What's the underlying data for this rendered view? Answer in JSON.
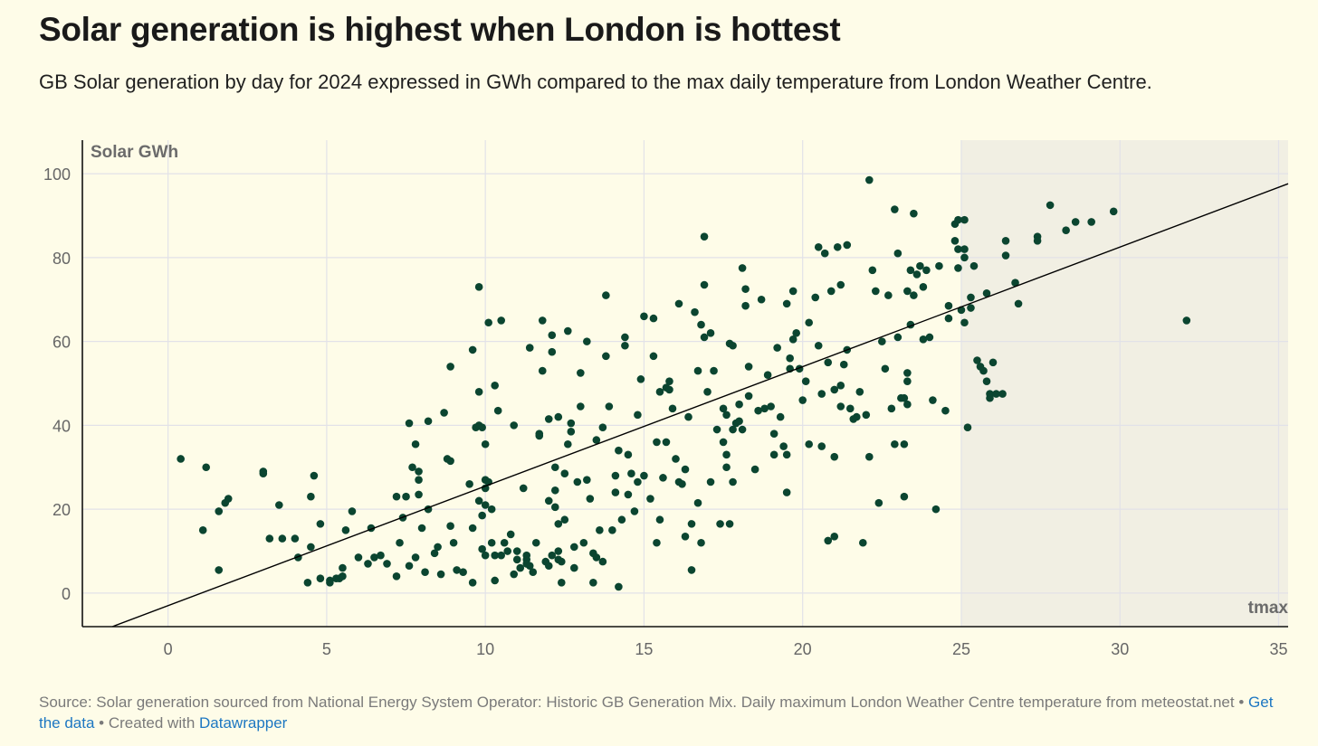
{
  "header": {
    "title": "Solar generation is highest when London is hottest",
    "subtitle": "GB Solar generation by day for 2024 expressed in GWh compared to the max daily temperature from London Weather Centre."
  },
  "footer": {
    "source": "Source: Solar generation sourced from National Energy System Operator: Historic GB Generation Mix. Daily maximum London Weather Centre temperature from meteostat.net",
    "sep1": " • ",
    "get_data": "Get the data",
    "sep2": " • Created with ",
    "datawrapper": "Datawrapper"
  },
  "colors": {
    "background": "#fefce8",
    "point": "#0b4530",
    "shade": "#f1efe3",
    "grid": "#e2e2e8",
    "trend": "#000000"
  },
  "chart_data": {
    "type": "scatter",
    "title": "Solar generation is highest when London is hottest",
    "xlabel": "tmax",
    "ylabel": "Solar GWh",
    "xlim": [
      -2.7,
      35.3
    ],
    "ylim": [
      -8,
      108
    ],
    "xticks": [
      0,
      5,
      10,
      15,
      20,
      25,
      30,
      35
    ],
    "yticks": [
      0,
      20,
      40,
      60,
      80,
      100
    ],
    "grid": true,
    "shaded_range": [
      25,
      35.3
    ],
    "trendline": {
      "slope": 2.85,
      "intercept": -3.0
    },
    "x_tick_labels": [
      "0",
      "5",
      "10",
      "15",
      "20",
      "25",
      "30",
      "35"
    ],
    "y_tick_labels": [
      "0",
      "20",
      "40",
      "60",
      "80",
      "100"
    ],
    "points": [
      [
        0.4,
        32
      ],
      [
        1.2,
        30
      ],
      [
        1.1,
        15
      ],
      [
        1.6,
        19.5
      ],
      [
        1.8,
        21.5
      ],
      [
        1.9,
        22.5
      ],
      [
        1.6,
        5.5
      ],
      [
        3.0,
        29
      ],
      [
        3.0,
        28.5
      ],
      [
        3.5,
        21
      ],
      [
        3.2,
        13
      ],
      [
        3.6,
        13
      ],
      [
        4.0,
        13
      ],
      [
        4.1,
        8.5
      ],
      [
        4.4,
        2.5
      ],
      [
        4.5,
        11
      ],
      [
        4.5,
        23
      ],
      [
        4.6,
        28
      ],
      [
        4.8,
        16.5
      ],
      [
        4.8,
        3.5
      ],
      [
        5.1,
        3
      ],
      [
        5.1,
        2.5
      ],
      [
        5.3,
        3.5
      ],
      [
        5.4,
        3.5
      ],
      [
        5.5,
        6
      ],
      [
        5.5,
        4
      ],
      [
        5.6,
        15
      ],
      [
        5.8,
        19.5
      ],
      [
        6.0,
        8.5
      ],
      [
        6.3,
        7
      ],
      [
        6.4,
        15.5
      ],
      [
        6.5,
        8.5
      ],
      [
        6.7,
        9
      ],
      [
        6.9,
        7
      ],
      [
        7.2,
        4
      ],
      [
        7.2,
        23
      ],
      [
        7.3,
        12
      ],
      [
        7.4,
        18
      ],
      [
        7.5,
        23
      ],
      [
        7.6,
        6.5
      ],
      [
        7.6,
        40.5
      ],
      [
        7.7,
        30
      ],
      [
        7.8,
        8.5
      ],
      [
        7.8,
        35.5
      ],
      [
        7.9,
        27
      ],
      [
        7.9,
        23.5
      ],
      [
        7.9,
        29
      ],
      [
        8.0,
        15.5
      ],
      [
        8.1,
        5
      ],
      [
        8.2,
        41
      ],
      [
        8.2,
        20
      ],
      [
        8.4,
        9.5
      ],
      [
        8.5,
        11
      ],
      [
        8.6,
        4.5
      ],
      [
        8.7,
        43
      ],
      [
        8.8,
        32
      ],
      [
        8.9,
        54
      ],
      [
        8.9,
        31.5
      ],
      [
        8.9,
        16
      ],
      [
        9.0,
        12
      ],
      [
        9.1,
        5.5
      ],
      [
        9.3,
        5
      ],
      [
        9.5,
        26
      ],
      [
        9.6,
        15.5
      ],
      [
        9.6,
        58
      ],
      [
        9.6,
        2.5
      ],
      [
        9.7,
        39.5
      ],
      [
        9.8,
        73
      ],
      [
        9.8,
        40
      ],
      [
        9.8,
        48
      ],
      [
        9.8,
        22
      ],
      [
        9.9,
        10.5
      ],
      [
        9.9,
        18.5
      ],
      [
        9.9,
        39.5
      ],
      [
        10.0,
        27
      ],
      [
        10.0,
        25
      ],
      [
        10.0,
        21
      ],
      [
        10.0,
        9
      ],
      [
        10.0,
        35.5
      ],
      [
        10.1,
        64.5
      ],
      [
        10.1,
        26.5
      ],
      [
        10.2,
        20
      ],
      [
        10.2,
        12
      ],
      [
        10.3,
        3
      ],
      [
        10.3,
        49.5
      ],
      [
        10.3,
        9
      ],
      [
        10.4,
        43.5
      ],
      [
        10.5,
        9
      ],
      [
        10.5,
        65
      ],
      [
        10.6,
        12
      ],
      [
        10.7,
        10
      ],
      [
        10.8,
        14
      ],
      [
        10.9,
        40
      ],
      [
        10.9,
        4.5
      ],
      [
        11.0,
        10
      ],
      [
        11.0,
        8
      ],
      [
        11.1,
        6
      ],
      [
        11.2,
        25
      ],
      [
        11.3,
        9
      ],
      [
        11.3,
        8
      ],
      [
        11.3,
        7
      ],
      [
        11.4,
        6.5
      ],
      [
        11.4,
        58.5
      ],
      [
        11.5,
        5
      ],
      [
        11.6,
        12
      ],
      [
        11.7,
        38
      ],
      [
        11.7,
        37.5
      ],
      [
        11.8,
        53
      ],
      [
        11.8,
        65
      ],
      [
        11.9,
        7.5
      ],
      [
        12.0,
        6.5
      ],
      [
        12.0,
        41.5
      ],
      [
        12.0,
        22
      ],
      [
        12.1,
        61.5
      ],
      [
        12.1,
        57.5
      ],
      [
        12.1,
        9
      ],
      [
        12.2,
        30
      ],
      [
        12.2,
        24.5
      ],
      [
        12.2,
        20.5
      ],
      [
        12.3,
        42
      ],
      [
        12.3,
        10
      ],
      [
        12.3,
        8
      ],
      [
        12.3,
        16.5
      ],
      [
        12.4,
        2.5
      ],
      [
        12.4,
        7.5
      ],
      [
        12.5,
        28.5
      ],
      [
        12.5,
        17.5
      ],
      [
        12.6,
        62.5
      ],
      [
        12.6,
        35.5
      ],
      [
        12.7,
        40.5
      ],
      [
        12.7,
        38.5
      ],
      [
        12.8,
        6
      ],
      [
        12.8,
        11
      ],
      [
        12.9,
        26.5
      ],
      [
        13.0,
        44.5
      ],
      [
        13.0,
        52.5
      ],
      [
        13.1,
        12
      ],
      [
        13.2,
        60
      ],
      [
        13.2,
        27
      ],
      [
        13.3,
        22.5
      ],
      [
        13.4,
        9.5
      ],
      [
        13.4,
        2.5
      ],
      [
        13.5,
        8.5
      ],
      [
        13.5,
        36.5
      ],
      [
        13.6,
        15
      ],
      [
        13.7,
        7.5
      ],
      [
        13.7,
        39.5
      ],
      [
        13.8,
        56.5
      ],
      [
        13.8,
        71
      ],
      [
        13.9,
        44.5
      ],
      [
        14.0,
        15
      ],
      [
        14.1,
        24
      ],
      [
        14.1,
        28
      ],
      [
        14.2,
        1.5
      ],
      [
        14.2,
        34
      ],
      [
        14.3,
        17.5
      ],
      [
        14.4,
        61
      ],
      [
        14.4,
        59
      ],
      [
        14.5,
        33
      ],
      [
        14.5,
        23.5
      ],
      [
        14.6,
        28.5
      ],
      [
        14.7,
        19.5
      ],
      [
        14.8,
        26.5
      ],
      [
        14.8,
        42.5
      ],
      [
        14.9,
        51
      ],
      [
        15.0,
        66
      ],
      [
        15.0,
        28
      ],
      [
        15.2,
        22.5
      ],
      [
        15.3,
        65.5
      ],
      [
        15.3,
        56.5
      ],
      [
        15.4,
        12
      ],
      [
        15.4,
        36
      ],
      [
        15.5,
        17.5
      ],
      [
        15.5,
        48
      ],
      [
        15.6,
        27.5
      ],
      [
        15.7,
        36
      ],
      [
        15.7,
        49
      ],
      [
        15.8,
        48.5
      ],
      [
        15.8,
        50.5
      ],
      [
        15.9,
        44
      ],
      [
        16.0,
        32
      ],
      [
        16.1,
        69
      ],
      [
        16.1,
        26.5
      ],
      [
        16.2,
        26
      ],
      [
        16.3,
        13.5
      ],
      [
        16.3,
        29.5
      ],
      [
        16.4,
        42
      ],
      [
        16.5,
        5.5
      ],
      [
        16.5,
        16.5
      ],
      [
        16.6,
        67
      ],
      [
        16.7,
        21.5
      ],
      [
        16.7,
        53
      ],
      [
        16.8,
        64
      ],
      [
        16.8,
        12
      ],
      [
        16.9,
        61
      ],
      [
        16.9,
        73.5
      ],
      [
        16.9,
        85
      ],
      [
        17.0,
        48
      ],
      [
        17.1,
        62
      ],
      [
        17.1,
        26.5
      ],
      [
        17.2,
        53
      ],
      [
        17.3,
        39
      ],
      [
        17.4,
        16.5
      ],
      [
        17.5,
        36
      ],
      [
        17.5,
        44
      ],
      [
        17.6,
        33
      ],
      [
        17.6,
        30
      ],
      [
        17.6,
        42.5
      ],
      [
        17.7,
        16.5
      ],
      [
        17.7,
        59.5
      ],
      [
        17.8,
        59
      ],
      [
        17.8,
        26.5
      ],
      [
        17.8,
        39
      ],
      [
        17.9,
        40.5
      ],
      [
        18.0,
        41
      ],
      [
        18.0,
        45
      ],
      [
        18.1,
        39
      ],
      [
        18.1,
        77.5
      ],
      [
        18.2,
        68.5
      ],
      [
        18.2,
        72.5
      ],
      [
        18.3,
        47
      ],
      [
        18.3,
        54
      ],
      [
        18.5,
        29.5
      ],
      [
        18.6,
        43.5
      ],
      [
        18.7,
        70
      ],
      [
        18.8,
        44
      ],
      [
        18.9,
        52
      ],
      [
        19.0,
        44.5
      ],
      [
        19.1,
        38
      ],
      [
        19.1,
        33
      ],
      [
        19.2,
        58.5
      ],
      [
        19.3,
        42
      ],
      [
        19.4,
        35
      ],
      [
        19.5,
        33
      ],
      [
        19.5,
        24
      ],
      [
        19.5,
        69
      ],
      [
        19.6,
        53.5
      ],
      [
        19.6,
        56
      ],
      [
        19.7,
        60.5
      ],
      [
        19.7,
        72
      ],
      [
        19.8,
        62
      ],
      [
        19.9,
        53.5
      ],
      [
        20.0,
        46
      ],
      [
        20.1,
        50.5
      ],
      [
        20.2,
        64.5
      ],
      [
        20.2,
        35.5
      ],
      [
        20.4,
        70.5
      ],
      [
        20.5,
        82.5
      ],
      [
        20.5,
        59
      ],
      [
        20.6,
        35
      ],
      [
        20.6,
        47.5
      ],
      [
        20.7,
        81
      ],
      [
        20.8,
        12.5
      ],
      [
        20.8,
        55
      ],
      [
        20.9,
        72
      ],
      [
        21.0,
        48.5
      ],
      [
        21.0,
        32.5
      ],
      [
        21.0,
        13.5
      ],
      [
        21.1,
        82.5
      ],
      [
        21.2,
        44.5
      ],
      [
        21.2,
        73.5
      ],
      [
        21.2,
        49.5
      ],
      [
        21.3,
        54.5
      ],
      [
        21.4,
        58
      ],
      [
        21.4,
        83
      ],
      [
        21.5,
        44
      ],
      [
        21.6,
        41.5
      ],
      [
        21.7,
        42
      ],
      [
        21.8,
        48
      ],
      [
        21.9,
        12
      ],
      [
        22.0,
        42.5
      ],
      [
        22.1,
        32.5
      ],
      [
        22.1,
        98.5
      ],
      [
        22.2,
        77
      ],
      [
        22.3,
        72
      ],
      [
        22.4,
        21.5
      ],
      [
        22.5,
        60
      ],
      [
        22.6,
        53.5
      ],
      [
        22.7,
        71
      ],
      [
        22.8,
        44
      ],
      [
        22.9,
        91.5
      ],
      [
        22.9,
        35.5
      ],
      [
        23.0,
        81
      ],
      [
        23.0,
        61
      ],
      [
        23.1,
        46.5
      ],
      [
        23.2,
        35.5
      ],
      [
        23.2,
        23
      ],
      [
        23.2,
        46.5
      ],
      [
        23.3,
        52.5
      ],
      [
        23.3,
        50.5
      ],
      [
        23.3,
        45
      ],
      [
        23.3,
        72
      ],
      [
        23.4,
        64
      ],
      [
        23.4,
        77
      ],
      [
        23.5,
        90.5
      ],
      [
        23.5,
        71
      ],
      [
        23.6,
        76
      ],
      [
        23.7,
        78
      ],
      [
        23.8,
        73
      ],
      [
        23.8,
        60.5
      ],
      [
        23.9,
        77
      ],
      [
        24.0,
        61
      ],
      [
        24.1,
        46
      ],
      [
        24.2,
        20
      ],
      [
        24.3,
        78
      ],
      [
        24.5,
        43.5
      ],
      [
        24.6,
        65.5
      ],
      [
        24.6,
        68.5
      ],
      [
        24.8,
        88
      ],
      [
        24.8,
        84
      ],
      [
        24.9,
        82
      ],
      [
        24.9,
        77.5
      ],
      [
        24.9,
        89
      ],
      [
        25.0,
        67.5
      ],
      [
        25.1,
        80
      ],
      [
        25.1,
        64.5
      ],
      [
        25.2,
        39.5
      ],
      [
        25.3,
        68
      ],
      [
        25.4,
        78
      ],
      [
        25.5,
        55.5
      ],
      [
        25.6,
        54
      ],
      [
        25.7,
        53
      ],
      [
        25.8,
        50.5
      ],
      [
        25.9,
        47.5
      ],
      [
        26.0,
        55
      ],
      [
        26.1,
        47.5
      ],
      [
        26.3,
        47.5
      ],
      [
        26.4,
        80.5
      ],
      [
        26.7,
        74
      ],
      [
        25.1,
        89
      ],
      [
        25.1,
        82
      ],
      [
        25.3,
        70.5
      ],
      [
        25.8,
        71.5
      ],
      [
        25.9,
        46.5
      ],
      [
        26.4,
        84
      ],
      [
        26.8,
        69
      ],
      [
        27.4,
        85
      ],
      [
        27.4,
        84
      ],
      [
        27.8,
        92.5
      ],
      [
        28.3,
        86.5
      ],
      [
        28.6,
        88.5
      ],
      [
        29.1,
        88.5
      ],
      [
        29.8,
        91
      ],
      [
        32.1,
        65
      ]
    ]
  }
}
